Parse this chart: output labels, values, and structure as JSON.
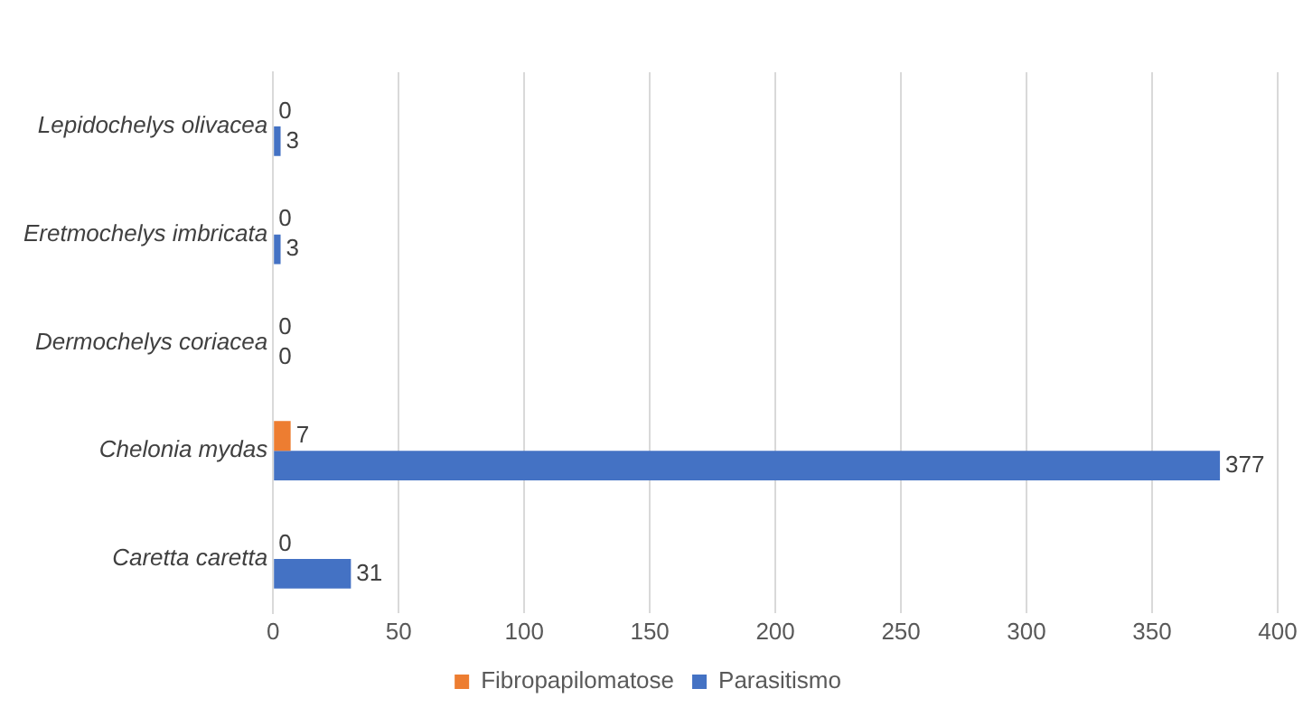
{
  "chart_data": {
    "type": "bar",
    "orientation": "horizontal",
    "categories": [
      "Lepidochelys olivacea",
      "Eretmochelys imbricata",
      "Dermochelys coriacea",
      "Chelonia mydas",
      "Caretta caretta"
    ],
    "series": [
      {
        "name": "Fibropapilomatose",
        "color": "#ed7d31",
        "values": [
          0,
          0,
          0,
          7,
          0
        ]
      },
      {
        "name": "Parasitismo",
        "color": "#4472c4",
        "values": [
          3,
          3,
          0,
          377,
          31
        ]
      }
    ],
    "xlim": [
      0,
      400
    ],
    "xticks": [
      0,
      50,
      100,
      150,
      200,
      250,
      300,
      350,
      400
    ],
    "grid": "x",
    "legend": "bottom",
    "data_labels": true
  }
}
